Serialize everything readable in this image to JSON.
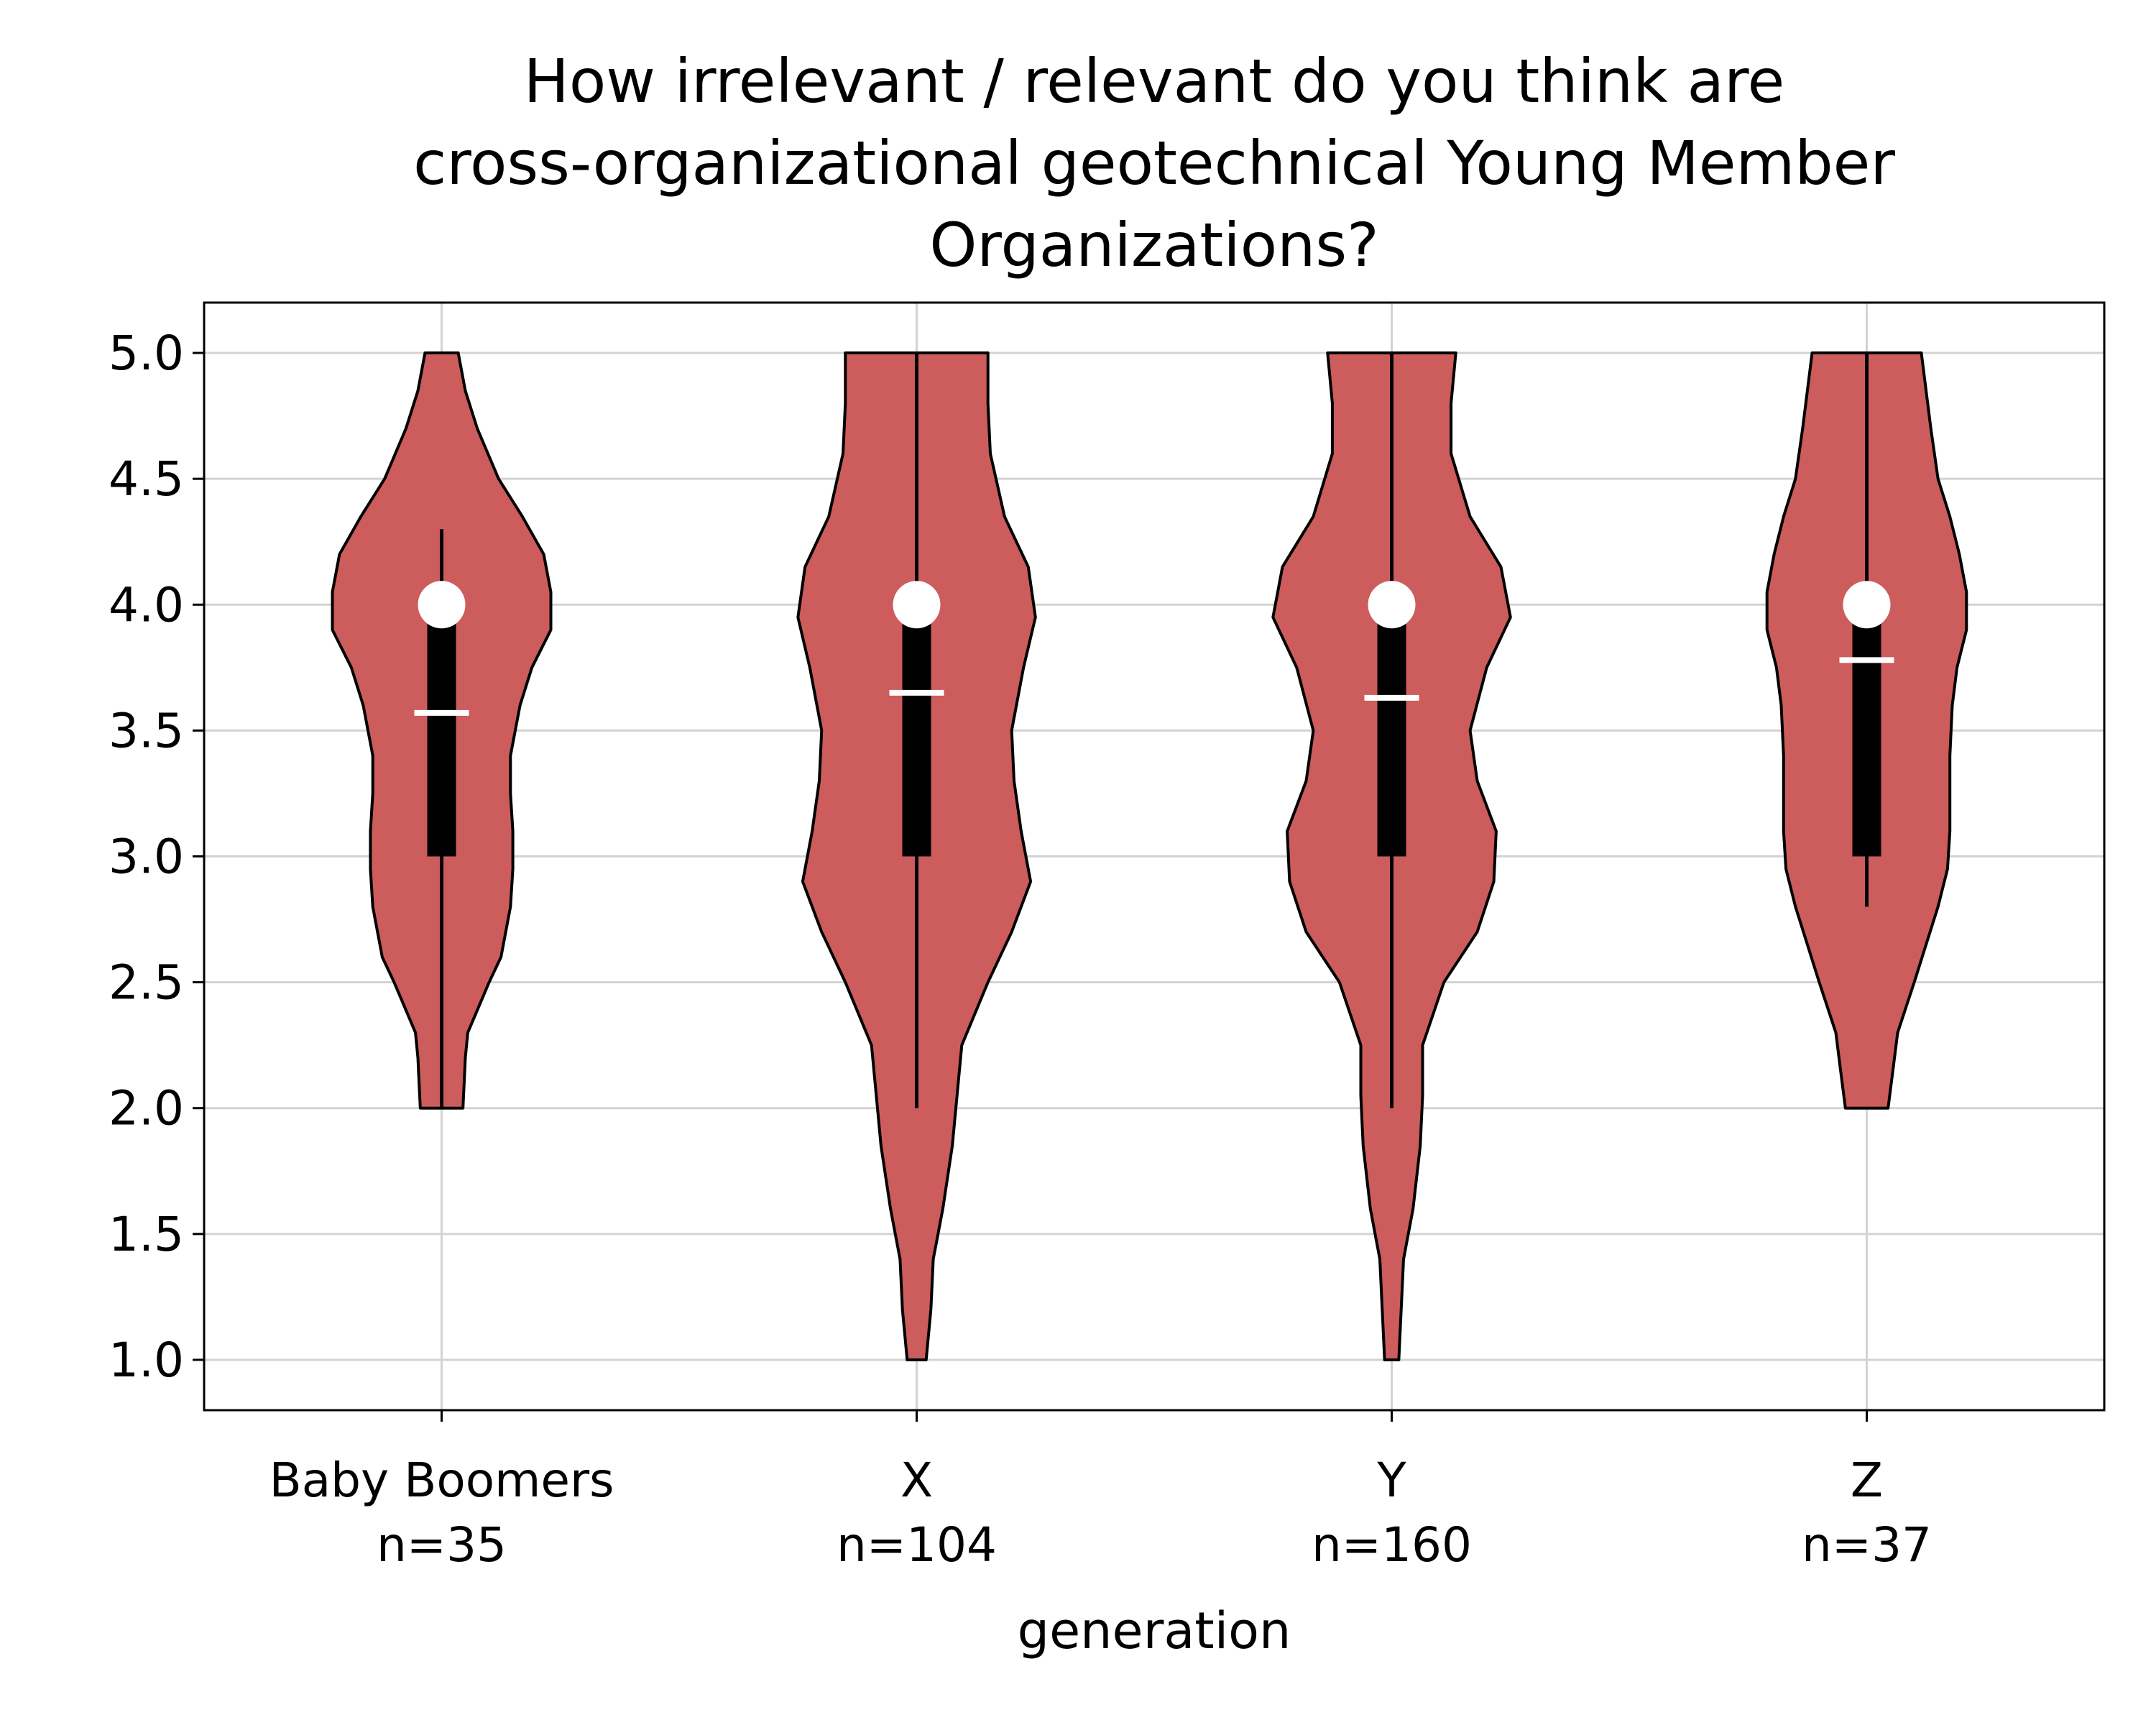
{
  "colors": {
    "violin_fill": "#cd5c5c",
    "violin_edge": "#000000",
    "grid": "#d3d3d3",
    "marker": "#ffffff",
    "box": "#000000"
  },
  "chart_data": {
    "type": "violin",
    "title": [
      "How irrelevant / relevant do you think are",
      "cross-organizational geotechnical Young Member",
      "Organizations?"
    ],
    "xlabel": "generation",
    "ylabel": "",
    "ylim": [
      0.8,
      5.2
    ],
    "yticks": [
      "1.0",
      "1.5",
      "2.0",
      "2.5",
      "3.0",
      "3.5",
      "4.0",
      "4.5",
      "5.0"
    ],
    "grid": true,
    "categories": [
      {
        "name": "Baby Boomers",
        "n_label": "n=35",
        "median": 4.0,
        "mean": 3.57,
        "q1": 3.0,
        "q3": 4.0,
        "whisker_low": 2.0,
        "whisker_high": 4.3,
        "density": [
          [
            2.0,
            0.09
          ],
          [
            2.2,
            0.1
          ],
          [
            2.3,
            0.11
          ],
          [
            2.5,
            0.2
          ],
          [
            2.6,
            0.25
          ],
          [
            2.8,
            0.29
          ],
          [
            2.95,
            0.3
          ],
          [
            3.1,
            0.3
          ],
          [
            3.25,
            0.29
          ],
          [
            3.4,
            0.29
          ],
          [
            3.6,
            0.33
          ],
          [
            3.75,
            0.38
          ],
          [
            3.9,
            0.46
          ],
          [
            4.05,
            0.46
          ],
          [
            4.2,
            0.43
          ],
          [
            4.35,
            0.34
          ],
          [
            4.5,
            0.24
          ],
          [
            4.7,
            0.15
          ],
          [
            4.85,
            0.1
          ],
          [
            5.0,
            0.07
          ]
        ]
      },
      {
        "name": "X",
        "n_label": "n=104",
        "median": 4.0,
        "mean": 3.65,
        "q1": 3.0,
        "q3": 4.0,
        "whisker_low": 2.0,
        "whisker_high": 5.0,
        "density": [
          [
            1.0,
            0.04
          ],
          [
            1.2,
            0.06
          ],
          [
            1.4,
            0.07
          ],
          [
            1.6,
            0.11
          ],
          [
            1.85,
            0.15
          ],
          [
            2.05,
            0.17
          ],
          [
            2.25,
            0.19
          ],
          [
            2.5,
            0.3
          ],
          [
            2.7,
            0.4
          ],
          [
            2.9,
            0.48
          ],
          [
            3.1,
            0.44
          ],
          [
            3.3,
            0.41
          ],
          [
            3.5,
            0.4
          ],
          [
            3.75,
            0.45
          ],
          [
            3.95,
            0.5
          ],
          [
            4.15,
            0.47
          ],
          [
            4.35,
            0.37
          ],
          [
            4.6,
            0.31
          ],
          [
            4.8,
            0.3
          ],
          [
            5.0,
            0.3
          ]
        ]
      },
      {
        "name": "Y",
        "n_label": "n=160",
        "median": 4.0,
        "mean": 3.63,
        "q1": 3.0,
        "q3": 4.0,
        "whisker_low": 2.0,
        "whisker_high": 5.0,
        "density": [
          [
            1.0,
            0.03
          ],
          [
            1.2,
            0.04
          ],
          [
            1.4,
            0.05
          ],
          [
            1.6,
            0.09
          ],
          [
            1.85,
            0.12
          ],
          [
            2.05,
            0.13
          ],
          [
            2.25,
            0.13
          ],
          [
            2.5,
            0.22
          ],
          [
            2.7,
            0.36
          ],
          [
            2.9,
            0.43
          ],
          [
            3.1,
            0.44
          ],
          [
            3.3,
            0.36
          ],
          [
            3.5,
            0.33
          ],
          [
            3.75,
            0.4
          ],
          [
            3.95,
            0.5
          ],
          [
            4.15,
            0.46
          ],
          [
            4.35,
            0.33
          ],
          [
            4.6,
            0.25
          ],
          [
            4.8,
            0.25
          ],
          [
            5.0,
            0.27
          ]
        ]
      },
      {
        "name": "Z",
        "n_label": "n=37",
        "median": 4.0,
        "mean": 3.78,
        "q1": 3.0,
        "q3": 4.0,
        "whisker_low": 2.8,
        "whisker_high": 5.0,
        "density": [
          [
            2.0,
            0.09
          ],
          [
            2.15,
            0.11
          ],
          [
            2.3,
            0.13
          ],
          [
            2.5,
            0.2
          ],
          [
            2.65,
            0.25
          ],
          [
            2.8,
            0.3
          ],
          [
            2.95,
            0.34
          ],
          [
            3.1,
            0.35
          ],
          [
            3.25,
            0.35
          ],
          [
            3.4,
            0.35
          ],
          [
            3.6,
            0.36
          ],
          [
            3.75,
            0.38
          ],
          [
            3.9,
            0.42
          ],
          [
            4.05,
            0.42
          ],
          [
            4.2,
            0.39
          ],
          [
            4.35,
            0.35
          ],
          [
            4.5,
            0.3
          ],
          [
            4.7,
            0.27
          ],
          [
            4.85,
            0.25
          ],
          [
            5.0,
            0.23
          ]
        ]
      }
    ]
  }
}
